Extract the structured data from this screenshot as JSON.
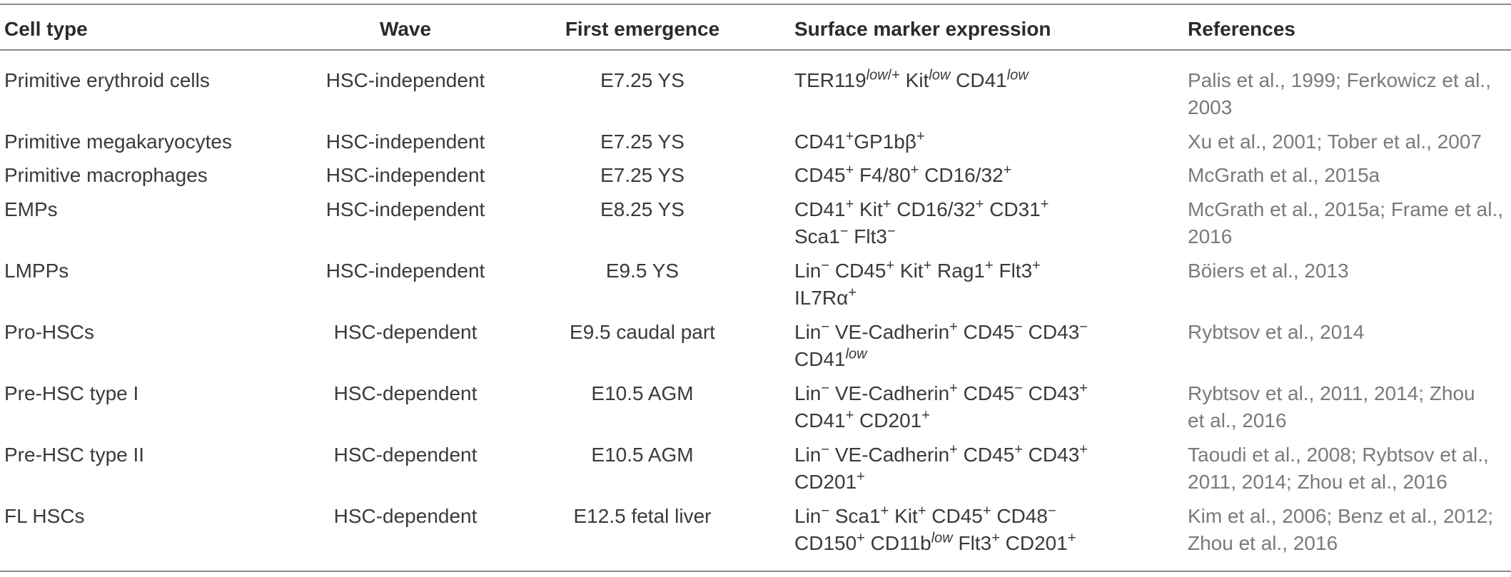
{
  "table": {
    "headers": {
      "cell_type": "Cell type",
      "wave": "Wave",
      "first_emergence": "First emergence",
      "surface_marker": "Surface marker expression",
      "references": "References"
    },
    "rows": [
      {
        "cell_type": "Primitive erythroid cells",
        "wave": "HSC-independent",
        "first_emergence": "E7.25 YS",
        "marker_lines": [
          "TER119low/+ Kitlow CD41low"
        ],
        "reference_lines": [
          " Palis et al., 1999; Ferkowicz et al.,",
          " 2003"
        ]
      },
      {
        "cell_type": "Primitive megakaryocytes",
        "wave": "HSC-independent",
        "first_emergence": "E7.25 YS",
        "marker_lines": [
          "CD41+GP1bβ+"
        ],
        "reference_lines": [
          "Xu et al., 2001; Tober et al., 2007"
        ]
      },
      {
        "cell_type": "Primitive macrophages",
        "wave": "HSC-independent",
        "first_emergence": "E7.25 YS",
        "marker_lines": [
          "CD45+ F4/80+ CD16/32+"
        ],
        "reference_lines": [
          "McGrath et al., 2015a"
        ]
      },
      {
        "cell_type": "EMPs",
        "wave": "HSC-independent",
        "first_emergence": "E8.25 YS",
        "marker_lines": [
          "CD41+ Kit+ CD16/32+ CD31+",
          "Sca1− Flt3−"
        ],
        "reference_lines": [
          "McGrath et al., 2015a; Frame et al.,",
          "2016"
        ]
      },
      {
        "cell_type": "LMPPs",
        "wave": "HSC-independent",
        "first_emergence": "E9.5 YS",
        "marker_lines": [
          "Lin− CD45+ Kit+ Rag1+ Flt3+",
          "IL7Rα+"
        ],
        "reference_lines": [
          "Böiers et al., 2013"
        ]
      },
      {
        "cell_type": "Pro-HSCs",
        "wave": "HSC-dependent",
        "first_emergence": "E9.5 caudal part",
        "marker_lines": [
          "Lin− VE-Cadherin+ CD45− CD43−",
          "CD41low"
        ],
        "reference_lines": [
          "Rybtsov et al., 2014"
        ]
      },
      {
        "cell_type": "Pre-HSC type I",
        "wave": "HSC-dependent",
        "first_emergence": "E10.5 AGM",
        "marker_lines": [
          "Lin− VE-Cadherin+ CD45− CD43+",
          "CD41+ CD201+"
        ],
        "reference_lines": [
          "Rybtsov et al., 2011, 2014; Zhou",
          "et al., 2016"
        ]
      },
      {
        "cell_type": "Pre-HSC type II",
        "wave": "HSC-dependent",
        "first_emergence": "E10.5 AGM",
        "marker_lines": [
          "Lin− VE-Cadherin+ CD45+ CD43+",
          "CD201+"
        ],
        "reference_lines": [
          "Taoudi et al., 2008; Rybtsov et al.,",
          "2011, 2014; Zhou et al., 2016"
        ]
      },
      {
        "cell_type": "FL HSCs",
        "wave": "HSC-dependent",
        "first_emergence": "E12.5 fetal liver",
        "marker_lines": [
          "Lin− Sca1+ Kit+ CD45+ CD48−",
          "CD150+ CD11blow Flt3+ CD201+"
        ],
        "reference_lines": [
          "Kim et al., 2006; Benz et al., 2012;",
          "Zhou et al., 2016"
        ]
      }
    ]
  }
}
